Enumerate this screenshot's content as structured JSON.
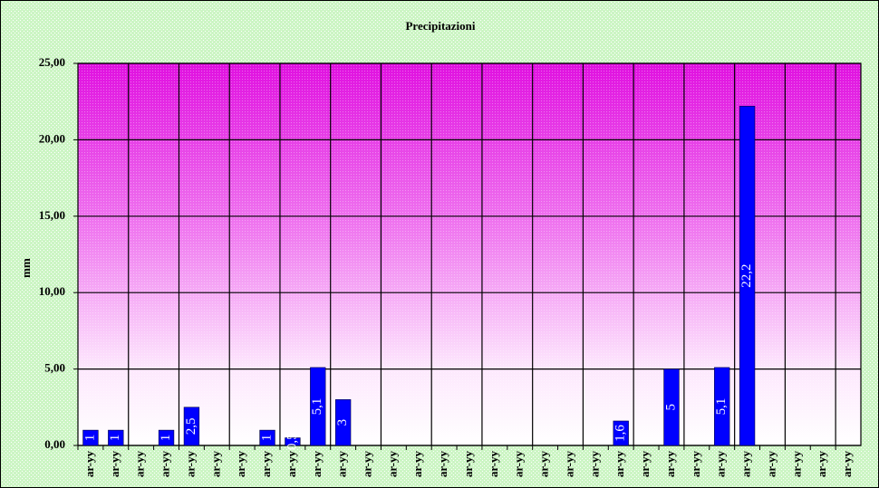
{
  "chart_data": {
    "type": "bar",
    "title": "Precipitazioni",
    "y_label": "mm",
    "categories": [
      "ar-yy",
      "ar-yy",
      "ar-yy",
      "ar-yy",
      "ar-yy",
      "ar-yy",
      "ar-yy",
      "ar-yy",
      "ar-yy",
      "ar-yy",
      "ar-yy",
      "ar-yy",
      "ar-yy",
      "ar-yy",
      "ar-yy",
      "ar-yy",
      "ar-yy",
      "ar-yy",
      "ar-yy",
      "ar-yy",
      "ar-yy",
      "ar-yy",
      "ar-yy",
      "ar-yy",
      "ar-yy",
      "ar-yy",
      "ar-yy",
      "ar-yy",
      "ar-yy",
      "ar-yy",
      "ar-yy"
    ],
    "values": [
      1,
      1,
      null,
      1,
      2.5,
      null,
      null,
      1,
      0.5,
      5.1,
      3,
      null,
      null,
      null,
      null,
      null,
      null,
      null,
      null,
      null,
      null,
      1.6,
      null,
      5,
      null,
      5.1,
      22.2,
      null,
      null,
      null,
      null
    ],
    "value_labels": [
      "1",
      "1",
      null,
      "1",
      "2,5",
      null,
      null,
      "1",
      "0,5",
      "5,1",
      "3",
      null,
      null,
      null,
      null,
      null,
      null,
      null,
      null,
      null,
      null,
      "1,6",
      null,
      "5",
      null,
      "5,1",
      "22,2",
      null,
      null,
      null,
      null
    ],
    "color": "#0000ff",
    "ylim": [
      0,
      25
    ],
    "yticks": [
      {
        "value": 0,
        "label": "0,00"
      },
      {
        "value": 5,
        "label": "5,00"
      },
      {
        "value": 10,
        "label": "10,00"
      },
      {
        "value": 15,
        "label": "15,00"
      },
      {
        "value": 20,
        "label": "20,00"
      },
      {
        "value": 25,
        "label": "25,00"
      }
    ],
    "grid": true
  }
}
